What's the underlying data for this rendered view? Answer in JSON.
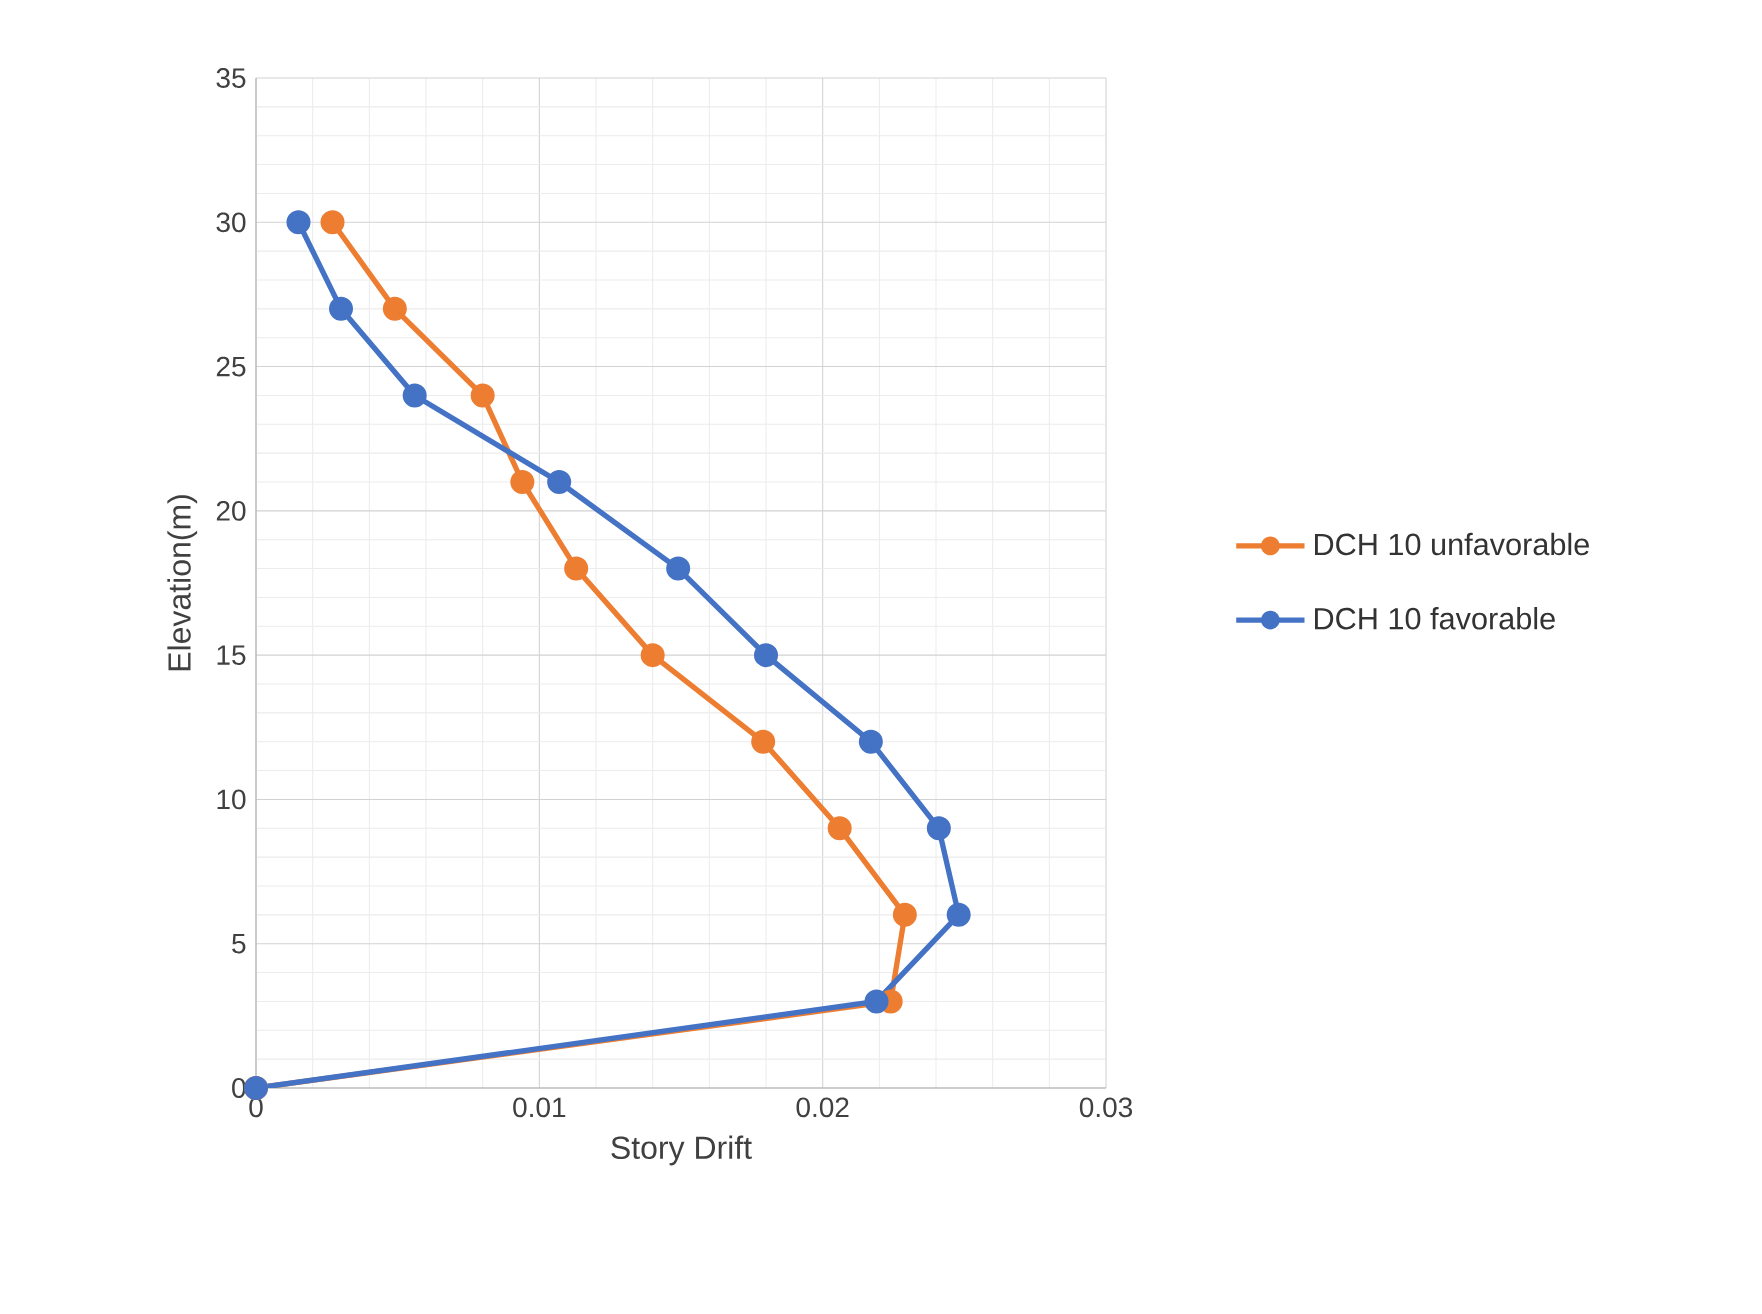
{
  "chart_data": {
    "type": "line",
    "xlabel": "Story Drift",
    "ylabel": "Elevation(m)",
    "xlim": [
      0,
      0.03
    ],
    "ylim": [
      0,
      35
    ],
    "xticks": [
      0,
      0.01,
      0.02,
      0.03
    ],
    "yticks": [
      0,
      5,
      10,
      15,
      20,
      25,
      30,
      35
    ],
    "grid": true,
    "legend": "right",
    "marker": "circle",
    "line_style": "solid",
    "series": [
      {
        "name": "DCH 10 unfavorable",
        "color": "#ed7d31",
        "x": [
          0,
          0.0224,
          0.0229,
          0.0206,
          0.0179,
          0.014,
          0.0113,
          0.0094,
          0.008,
          0.0049,
          0.0027
        ],
        "values": [
          0,
          3,
          6,
          9,
          12,
          15,
          18,
          21,
          24,
          27,
          30
        ]
      },
      {
        "name": "DCH 10 favorable",
        "color": "#4472c4",
        "x": [
          0,
          0.0219,
          0.0248,
          0.0241,
          0.0217,
          0.018,
          0.0149,
          0.0107,
          0.0056,
          0.003,
          0.0015
        ],
        "values": [
          0,
          3,
          6,
          9,
          12,
          15,
          18,
          21,
          24,
          27,
          30
        ]
      }
    ]
  }
}
